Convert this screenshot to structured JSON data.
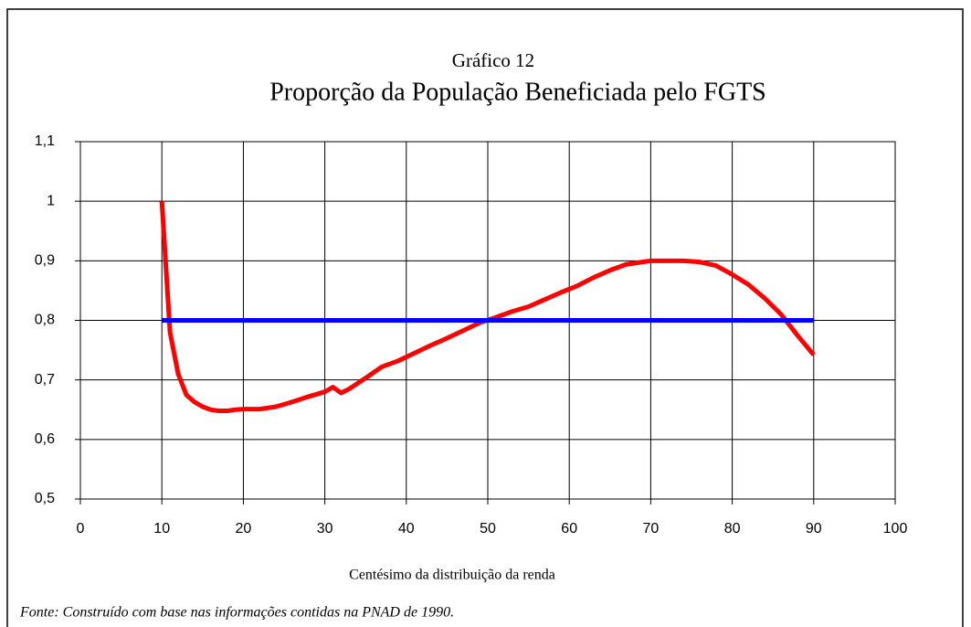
{
  "chart_data": {
    "type": "line",
    "title": "Gráfico 12",
    "subtitle": "Proporção da População Beneficiada pelo FGTS",
    "x_label": "Centésimo da distribuição da renda",
    "source": "Fonte: Construído com base nas informações contidas na PNAD de 1990.",
    "xlim": [
      0,
      100
    ],
    "xticks": [
      0,
      10,
      20,
      30,
      40,
      50,
      60,
      70,
      80,
      90,
      100
    ],
    "ylim": [
      0.5,
      1.1
    ],
    "yticks": [
      {
        "value": 0.5,
        "label": "0,5"
      },
      {
        "value": 0.6,
        "label": "0,6"
      },
      {
        "value": 0.7,
        "label": "0,7"
      },
      {
        "value": 0.8,
        "label": "0,8"
      },
      {
        "value": 0.9,
        "label": "0,9"
      },
      1,
      {
        "value": 1.1,
        "label": "1,1"
      }
    ],
    "grid": true,
    "series": [
      {
        "color": "#ff0000",
        "x": [
          10,
          11,
          12,
          13,
          14,
          15,
          16,
          17,
          18,
          19,
          20,
          22,
          24,
          26,
          28,
          30,
          31,
          32,
          33,
          35,
          37,
          39,
          41,
          43,
          45,
          47,
          49,
          51,
          53,
          55,
          57,
          59,
          61,
          63,
          65,
          67,
          69,
          70,
          72,
          74,
          76,
          78,
          80,
          82,
          84,
          86,
          88,
          90
        ],
        "values": [
          1.0,
          0.78,
          0.71,
          0.675,
          0.663,
          0.655,
          0.65,
          0.648,
          0.648,
          0.65,
          0.651,
          0.651,
          0.655,
          0.663,
          0.672,
          0.68,
          0.688,
          0.678,
          0.685,
          0.703,
          0.722,
          0.732,
          0.745,
          0.758,
          0.77,
          0.783,
          0.796,
          0.805,
          0.815,
          0.823,
          0.835,
          0.847,
          0.858,
          0.872,
          0.884,
          0.894,
          0.898,
          0.9,
          0.9,
          0.9,
          0.898,
          0.892,
          0.877,
          0.86,
          0.837,
          0.81,
          0.775,
          0.742
        ]
      },
      {
        "color": "#0000ff",
        "x": [
          10,
          90
        ],
        "values": [
          0.8,
          0.8
        ]
      }
    ]
  }
}
